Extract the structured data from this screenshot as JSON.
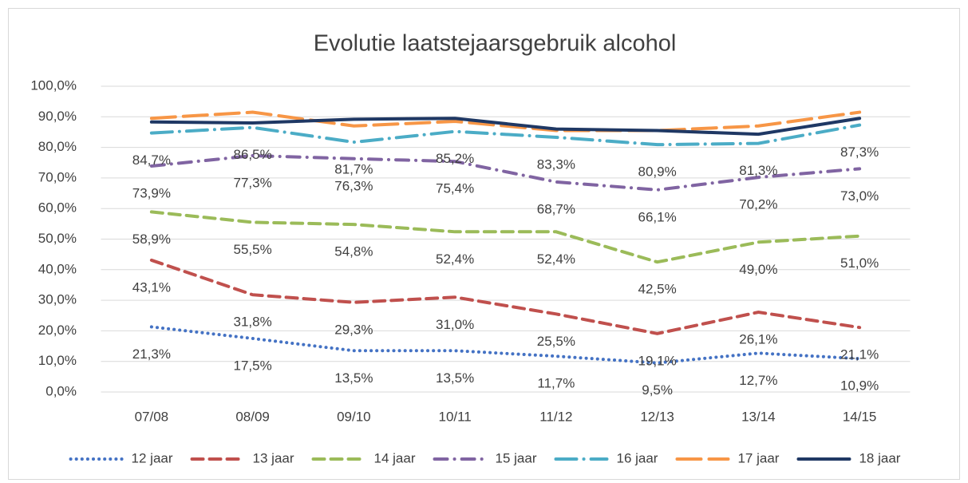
{
  "chart_data": {
    "type": "line",
    "title": "Evolutie laatstejaarsgebruik alcohol",
    "categories": [
      "07/08",
      "08/09",
      "09/10",
      "10/11",
      "11/12",
      "12/13",
      "13/14",
      "14/15"
    ],
    "ylim": [
      0,
      100
    ],
    "yticks": [
      {
        "value": 0,
        "label": "0,0%"
      },
      {
        "value": 10,
        "label": "10,0%"
      },
      {
        "value": 20,
        "label": "20,0%"
      },
      {
        "value": 30,
        "label": "30,0%"
      },
      {
        "value": 40,
        "label": "40,0%"
      },
      {
        "value": 50,
        "label": "50,0%"
      },
      {
        "value": 60,
        "label": "60,0%"
      },
      {
        "value": 70,
        "label": "70,0%"
      },
      {
        "value": 80,
        "label": "80,0%"
      },
      {
        "value": 90,
        "label": "90,0%"
      },
      {
        "value": 100,
        "label": "100,0%"
      }
    ],
    "grid": true,
    "legend": "bottom",
    "series": [
      {
        "name": "12 jaar",
        "color": "#4472c4",
        "dash": "dot",
        "values": [
          21.3,
          17.5,
          13.5,
          13.5,
          11.7,
          9.5,
          12.7,
          10.9
        ],
        "value_labels": [
          "21,3%",
          "17,5%",
          "13,5%",
          "13,5%",
          "11,7%",
          "9,5%",
          "12,7%",
          "10,9%"
        ]
      },
      {
        "name": "13 jaar",
        "color": "#c0504d",
        "dash": "dash",
        "values": [
          43.1,
          31.8,
          29.3,
          31.0,
          25.5,
          19.1,
          26.1,
          21.1
        ],
        "value_labels": [
          "43,1%",
          "31,8%",
          "29,3%",
          "31,0%",
          "25,5%",
          "19,1%",
          "26,1%",
          "21,1%"
        ]
      },
      {
        "name": "14 jaar",
        "color": "#9bbb59",
        "dash": "dash",
        "values": [
          58.9,
          55.5,
          54.8,
          52.4,
          52.4,
          42.5,
          49.0,
          51.0
        ],
        "value_labels": [
          "58,9%",
          "55,5%",
          "54,8%",
          "52,4%",
          "52,4%",
          "42,5%",
          "49,0%",
          "51,0%"
        ]
      },
      {
        "name": "15 jaar",
        "color": "#8064a2",
        "dash": "dashdot",
        "values": [
          73.9,
          77.3,
          76.3,
          75.4,
          68.7,
          66.1,
          70.2,
          73.0
        ],
        "value_labels": [
          "73,9%",
          "77,3%",
          "76,3%",
          "75,4%",
          "68,7%",
          "66,1%",
          "70,2%",
          "73,0%"
        ]
      },
      {
        "name": "16 jaar",
        "color": "#4bacc6",
        "dash": "longdashdot",
        "values": [
          84.7,
          86.5,
          81.7,
          85.2,
          83.3,
          80.9,
          81.3,
          87.3
        ],
        "value_labels": [
          "84,7%",
          "86,5%",
          "81,7%",
          "85,2%",
          "83,3%",
          "80,9%",
          "81,3%",
          "87,3%"
        ]
      },
      {
        "name": "17 jaar",
        "color": "#f79646",
        "dash": "longdash",
        "values": [
          89.5,
          91.5,
          87.0,
          88.5,
          85.5,
          85.5,
          87.0,
          91.5
        ]
      },
      {
        "name": "18 jaar",
        "color": "#1f3864",
        "dash": "solid",
        "values": [
          88.3,
          88.0,
          89.2,
          89.5,
          86.0,
          85.5,
          84.3,
          89.5
        ]
      }
    ]
  }
}
